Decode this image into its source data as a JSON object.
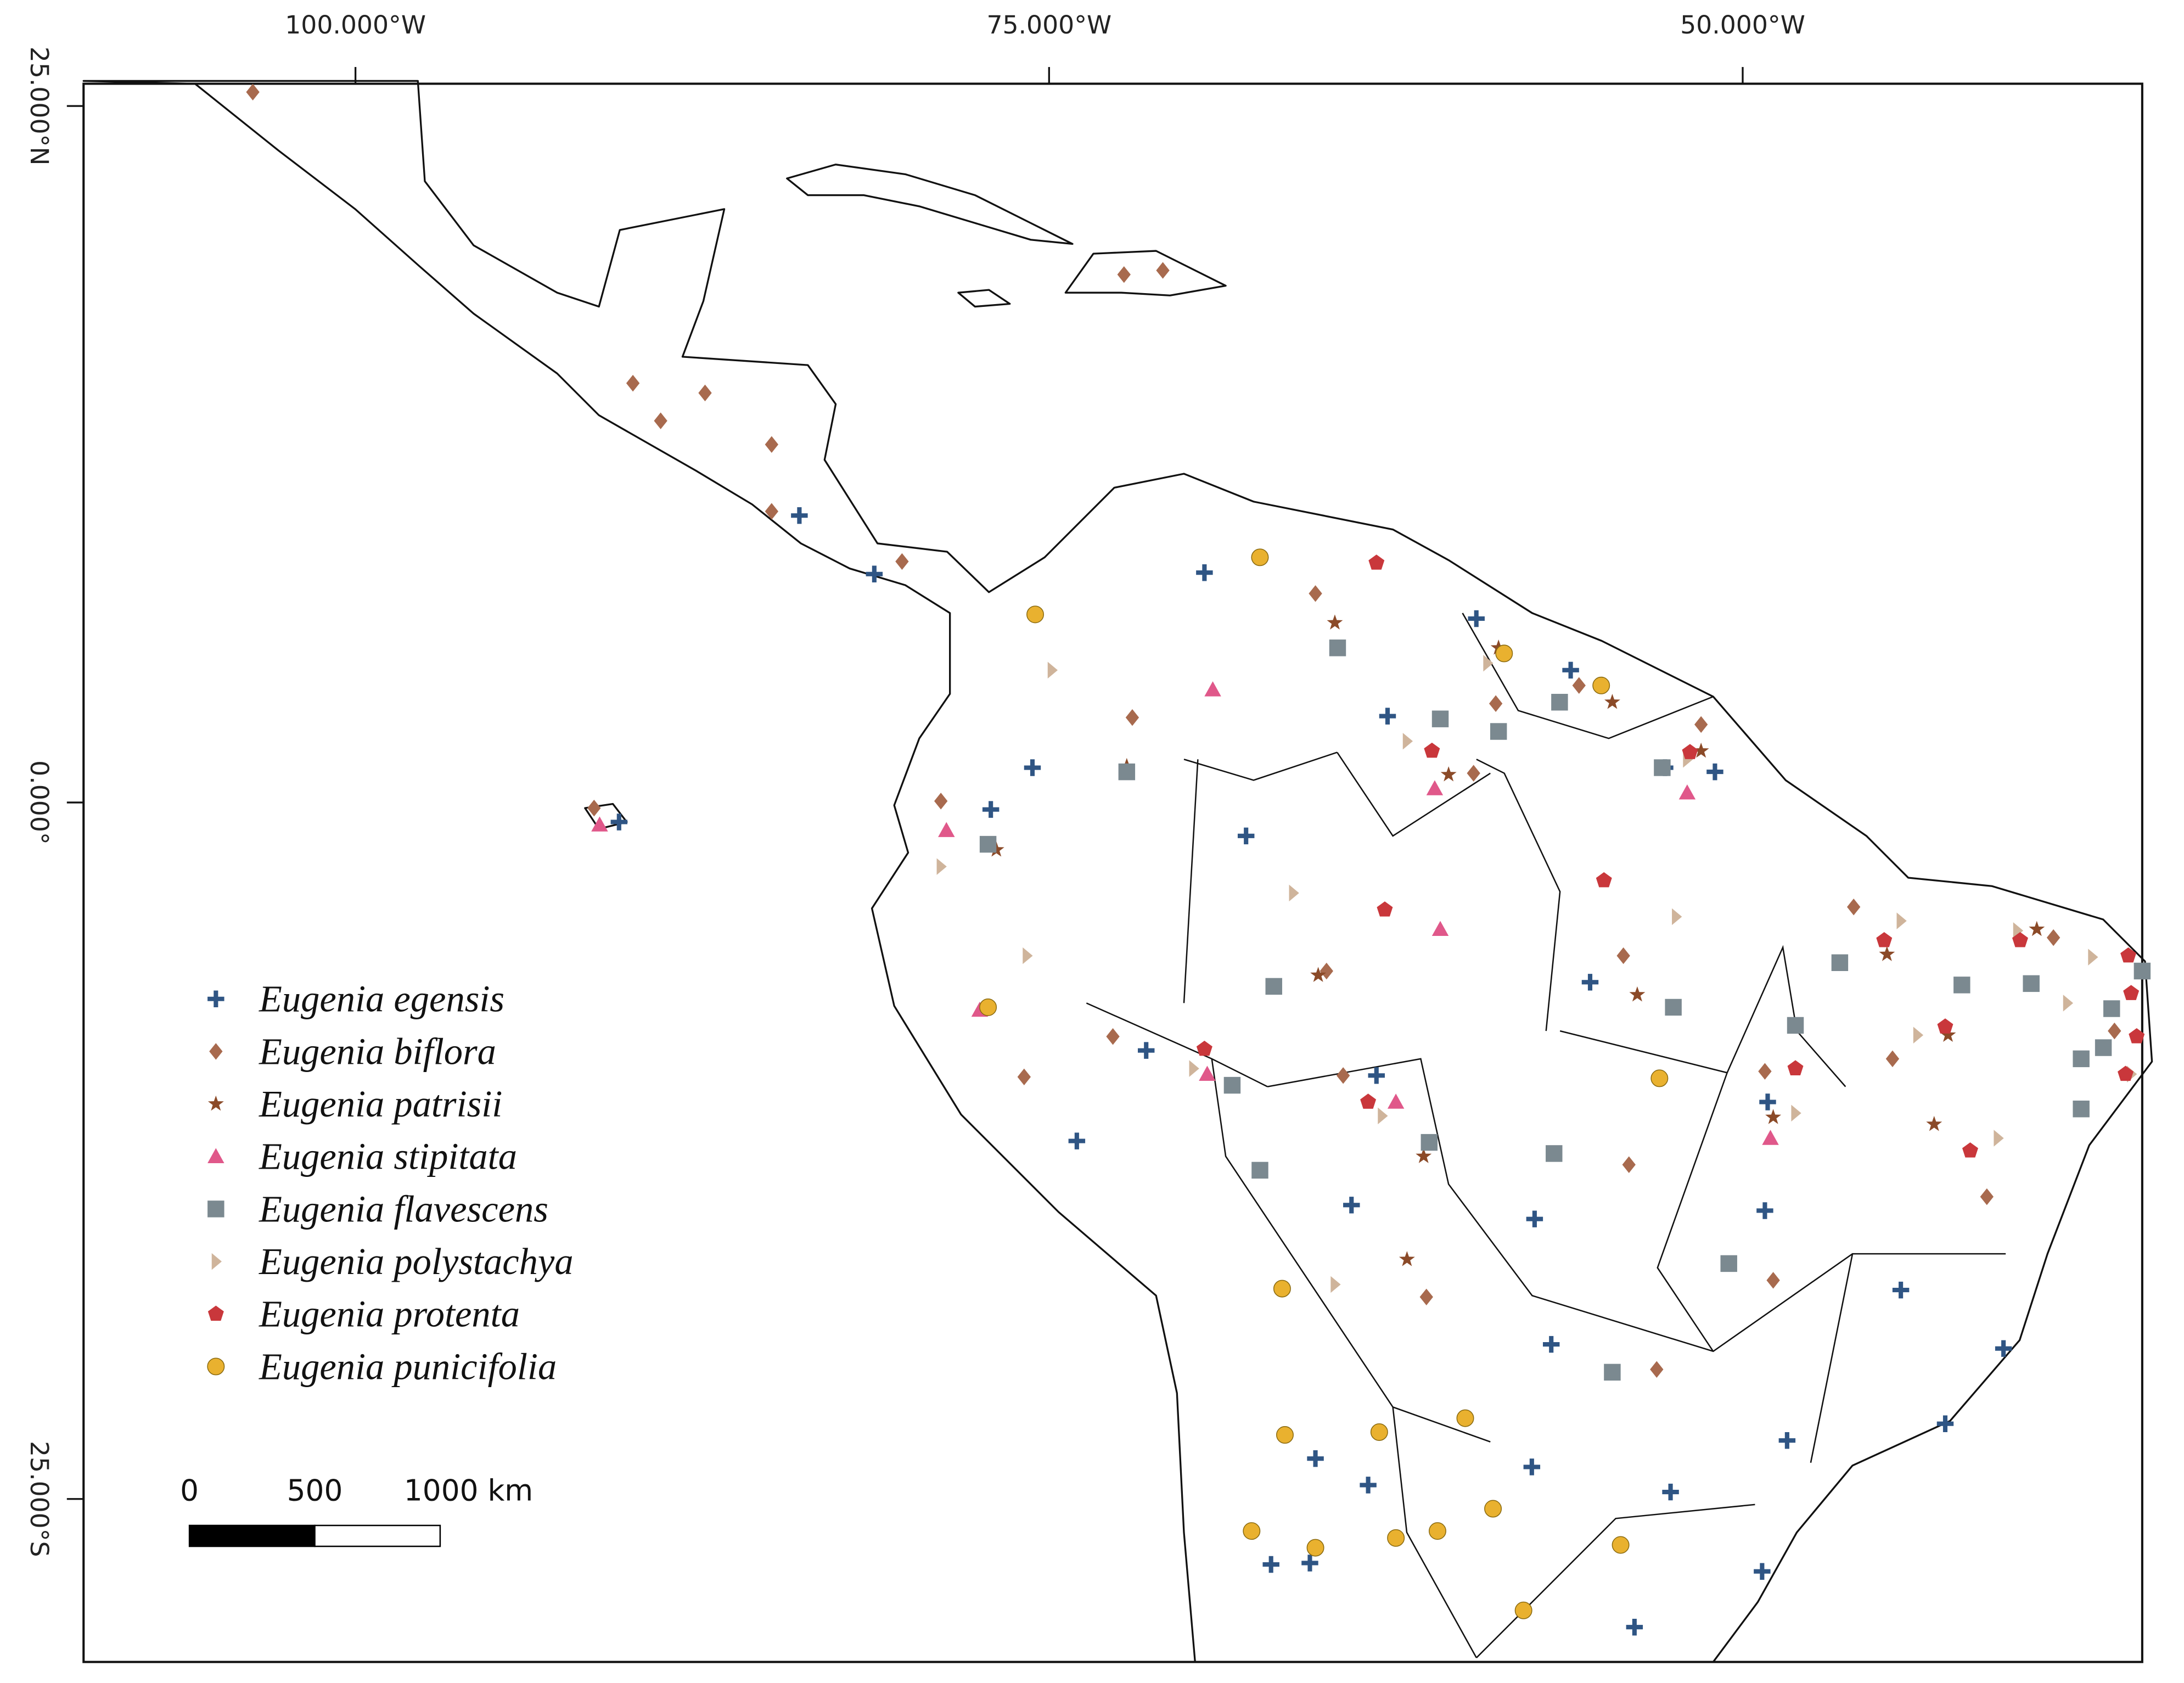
{
  "map": {
    "xlim": [
      -109.8,
      -35.6
    ],
    "ylim": [
      -30.85,
      25.8
    ],
    "xticks": [
      {
        "value": -100,
        "label": "100.000°W"
      },
      {
        "value": -75,
        "label": "75.000°W"
      },
      {
        "value": -50,
        "label": "50.000°W"
      }
    ],
    "yticks": [
      {
        "value": 25,
        "label": "25.000°N"
      },
      {
        "value": 0,
        "label": "0.000°"
      },
      {
        "value": -25,
        "label": "25.000°S"
      }
    ],
    "series": [
      {
        "name": "Eugenia egensis",
        "color": "#2f5584",
        "marker": "cross",
        "lon": [
          -84.0,
          -81.3,
          -69.4,
          -59.6,
          -56.2,
          -62.8,
          -75.6,
          -77.1,
          -67.9,
          -51.0,
          -52.8,
          -90.5,
          -55.5,
          -71.5,
          -63.2,
          -74.0,
          -49.1,
          -64.1,
          -57.5,
          -49.2,
          -44.3,
          -40.6,
          -56.9,
          -42.7,
          -48.4,
          -65.4,
          -63.5,
          -57.6,
          -52.6,
          -67.0,
          -65.6,
          -49.3,
          -53.9
        ],
        "lat": [
          10.3,
          8.2,
          8.25,
          6.6,
          4.75,
          3.1,
          1.25,
          -0.25,
          -1.2,
          1.1,
          1.25,
          -0.7,
          -6.45,
          -8.9,
          -9.8,
          -12.15,
          -10.75,
          -14.45,
          -14.95,
          -14.65,
          -17.5,
          -19.6,
          -19.45,
          -22.3,
          -22.9,
          -23.55,
          -24.5,
          -23.85,
          -24.75,
          -27.35,
          -27.3,
          -27.6,
          -29.6
        ]
      },
      {
        "name": "Eugenia biflora",
        "color": "#a86a4e",
        "marker": "diamond",
        "lon": [
          -103.7,
          -72.3,
          -70.9,
          -90.0,
          -87.4,
          -89.0,
          -85.0,
          -85.0,
          -80.3,
          -65.4,
          -72.0,
          -78.9,
          -91.4,
          -55.9,
          -58.9,
          -51.5,
          -59.7,
          -46.0,
          -54.3,
          -65.0,
          -72.7,
          -75.9,
          -64.4,
          -49.2,
          -54.1,
          -41.2,
          -48.9,
          -61.4,
          -53.1,
          -38.8,
          -44.6,
          -36.6
        ],
        "lat": [
          25.5,
          18.95,
          19.1,
          15.05,
          14.7,
          13.7,
          12.85,
          10.45,
          8.65,
          7.5,
          3.05,
          0.05,
          -0.2,
          4.2,
          3.55,
          2.8,
          1.05,
          -3.75,
          -5.5,
          -6.05,
          -8.4,
          -9.85,
          -9.8,
          -9.65,
          -13.0,
          -14.15,
          -17.15,
          -17.75,
          -20.35,
          -4.85,
          -9.2,
          -8.2
        ]
      },
      {
        "name": "Eugenia patrisii",
        "color": "#8b4a28",
        "marker": "star",
        "lon": [
          -64.7,
          -58.8,
          -54.7,
          -72.2,
          -76.9,
          -60.6,
          -51.5,
          -65.3,
          -53.8,
          -44.8,
          -39.4,
          -42.6,
          -48.9,
          -43.1,
          -61.5,
          -62.1
        ],
        "lat": [
          6.45,
          5.55,
          3.6,
          1.3,
          -1.7,
          1.0,
          1.85,
          -6.2,
          -6.9,
          -5.45,
          -4.55,
          -8.35,
          -11.3,
          -11.55,
          -12.7,
          -16.4
        ]
      },
      {
        "name": "Eugenia stipitata",
        "color": "#e0588a",
        "marker": "triangle",
        "lon": [
          -69.1,
          -61.1,
          -52.0,
          -78.7,
          -91.2,
          -60.9,
          -77.5,
          -69.3,
          -62.5,
          -49.0
        ],
        "lat": [
          4.05,
          0.5,
          0.35,
          -1.0,
          -0.8,
          -4.55,
          -7.45,
          -9.75,
          -10.75,
          -12.05
        ]
      },
      {
        "name": "Eugenia flavescens",
        "color": "#7b8990",
        "marker": "square",
        "lon": [
          -64.6,
          -60.9,
          -56.6,
          -58.8,
          -72.2,
          -77.2,
          -52.9,
          -66.9,
          -52.5,
          -46.5,
          -42.1,
          -48.1,
          -39.6,
          -35.6,
          -36.7,
          -37.0,
          -68.4,
          -61.3,
          -56.8,
          -67.4,
          -50.5,
          -54.7,
          -37.8,
          -37.8
        ],
        "lat": [
          5.55,
          3.0,
          3.6,
          2.55,
          1.1,
          -1.5,
          1.25,
          -6.6,
          -7.35,
          -5.75,
          -6.55,
          -8.0,
          -6.5,
          -6.05,
          -7.4,
          -8.8,
          -10.15,
          -12.2,
          -12.6,
          -13.2,
          -16.55,
          -20.45,
          -9.2,
          -11.0
        ]
      },
      {
        "name": "Eugenia polystachya",
        "color": "#cfb49b",
        "marker": "triangle-right",
        "lon": [
          -74.9,
          -59.2,
          -62.1,
          -52.0,
          -66.2,
          -52.4,
          -75.8,
          -78.9,
          -69.8,
          -63.0,
          -48.1,
          -44.3,
          -43.7,
          -40.8,
          -64.7,
          -40.1,
          -38.3,
          -37.4,
          -36.0
        ],
        "lat": [
          4.75,
          5.0,
          2.2,
          1.55,
          -3.25,
          -4.1,
          -5.5,
          -2.3,
          -9.55,
          -11.25,
          -11.15,
          -4.25,
          -8.35,
          -12.05,
          -17.3,
          -4.6,
          -7.2,
          -5.55,
          -9.75
        ]
      },
      {
        "name": "Eugenia protenta",
        "color": "#c9373b",
        "marker": "pentagon",
        "lon": [
          -63.2,
          -61.2,
          -51.9,
          -55.0,
          -62.9,
          -69.4,
          -63.5,
          -48.1,
          -44.9,
          -40.0,
          -36.1,
          -36.0,
          -42.7,
          -41.8,
          -35.8,
          -36.2
        ],
        "lat": [
          8.6,
          1.85,
          1.8,
          -2.8,
          -3.85,
          -8.85,
          -10.75,
          -9.55,
          -4.95,
          -4.95,
          -5.5,
          -6.85,
          -8.05,
          -12.5,
          -8.4,
          -9.75
        ]
      },
      {
        "name": "Eugenia punicifolia",
        "color": "#e9b12f",
        "marker": "circle",
        "lon": [
          -67.4,
          -75.5,
          -58.6,
          -55.1,
          -77.2,
          -53.0,
          -66.6,
          -66.5,
          -63.1,
          -60.0,
          -59.0,
          -67.7,
          -65.4,
          -62.5,
          -61.0,
          -54.4,
          -57.9
        ],
        "lat": [
          8.8,
          6.75,
          5.35,
          4.2,
          -7.35,
          -9.9,
          -17.45,
          -22.7,
          -22.6,
          -22.1,
          -25.35,
          -26.15,
          -26.75,
          -26.4,
          -26.15,
          -26.65,
          -29.0
        ]
      }
    ],
    "scale_bar": {
      "ticks": [
        {
          "value": 0,
          "label": "0"
        },
        {
          "value": 500,
          "label": "500"
        },
        {
          "value": 1000,
          "label": "1000 km"
        }
      ]
    }
  }
}
